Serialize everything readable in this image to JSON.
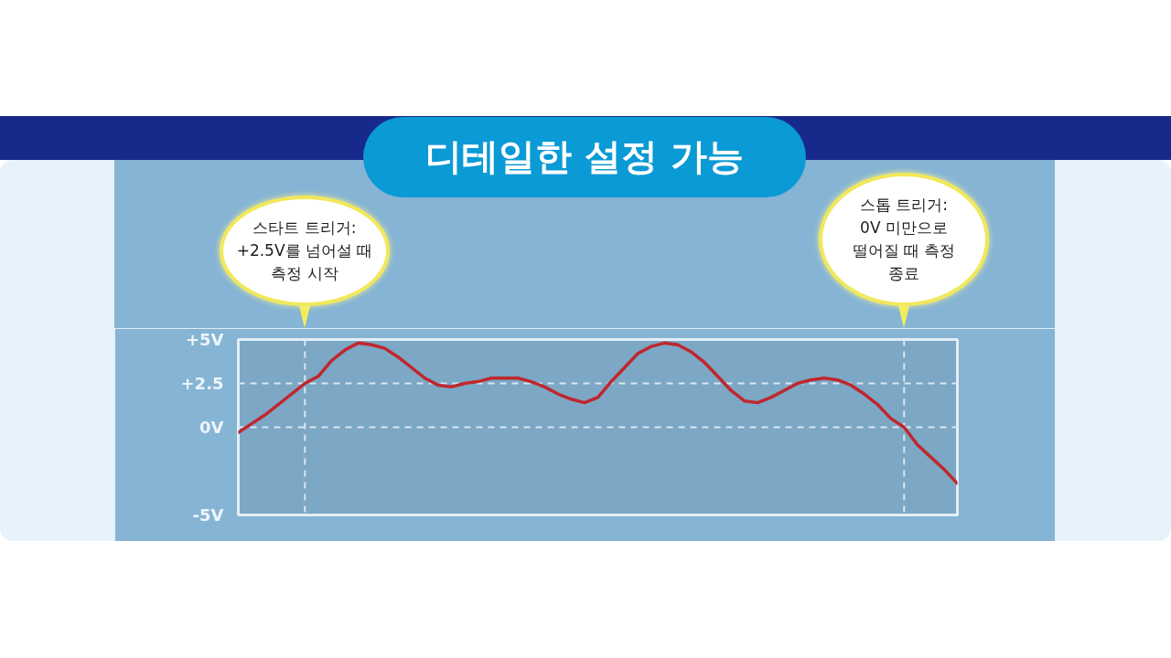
{
  "chart_data": {
    "type": "line",
    "title": "디테일한 설정 가능",
    "categories": [
      null,
      null,
      null,
      null,
      null,
      null,
      null,
      null,
      null,
      null,
      null,
      null,
      null,
      null,
      null,
      null,
      null,
      null,
      null,
      null,
      null,
      null,
      null,
      null,
      null,
      null,
      null,
      null,
      null,
      null,
      null,
      null,
      null,
      null,
      null,
      null,
      null,
      null,
      null,
      null,
      null,
      null,
      null,
      null,
      null,
      null,
      null,
      null,
      null,
      null,
      null,
      null,
      null,
      null,
      null
    ],
    "series": [
      {
        "color": "#c0272d",
        "values": [
          -0.3,
          0.2,
          0.7,
          1.3,
          1.9,
          2.5,
          2.9,
          3.8,
          4.4,
          4.8,
          4.7,
          4.5,
          4.0,
          3.4,
          2.8,
          2.4,
          2.3,
          2.5,
          2.6,
          2.8,
          2.8,
          2.8,
          2.6,
          2.3,
          1.9,
          1.6,
          1.4,
          1.7,
          2.6,
          3.4,
          4.2,
          4.6,
          4.8,
          4.7,
          4.3,
          3.7,
          2.9,
          2.1,
          1.5,
          1.4,
          1.7,
          2.1,
          2.5,
          2.7,
          2.8,
          2.7,
          2.4,
          1.9,
          1.3,
          0.5,
          0.0,
          -1.0,
          -1.7,
          -2.4,
          -3.2
        ]
      }
    ],
    "ylim": [
      -5,
      5
    ],
    "yticks": [
      {
        "value": 5,
        "label": "+5V"
      },
      {
        "value": 2.5,
        "label": "+2.5"
      },
      {
        "value": 0,
        "label": "0V"
      },
      {
        "value": -5,
        "label": "-5V"
      }
    ],
    "ref_lines": [
      {
        "axis": "y",
        "value": 2.5,
        "color": "#d9e7f1",
        "line_style": "dashed"
      },
      {
        "axis": "y",
        "value": 0,
        "color": "#d9e7f1",
        "line_style": "dashed"
      }
    ],
    "annotations": [
      "스타트 트리거:\n+2.5V를 넘어설 때\n측정 시작",
      "스톱 트리거:\n0V 미만으로\n떨어질 때 측정\n종료"
    ],
    "grid": false,
    "tick_labels": "y",
    "line_style": "solid"
  }
}
